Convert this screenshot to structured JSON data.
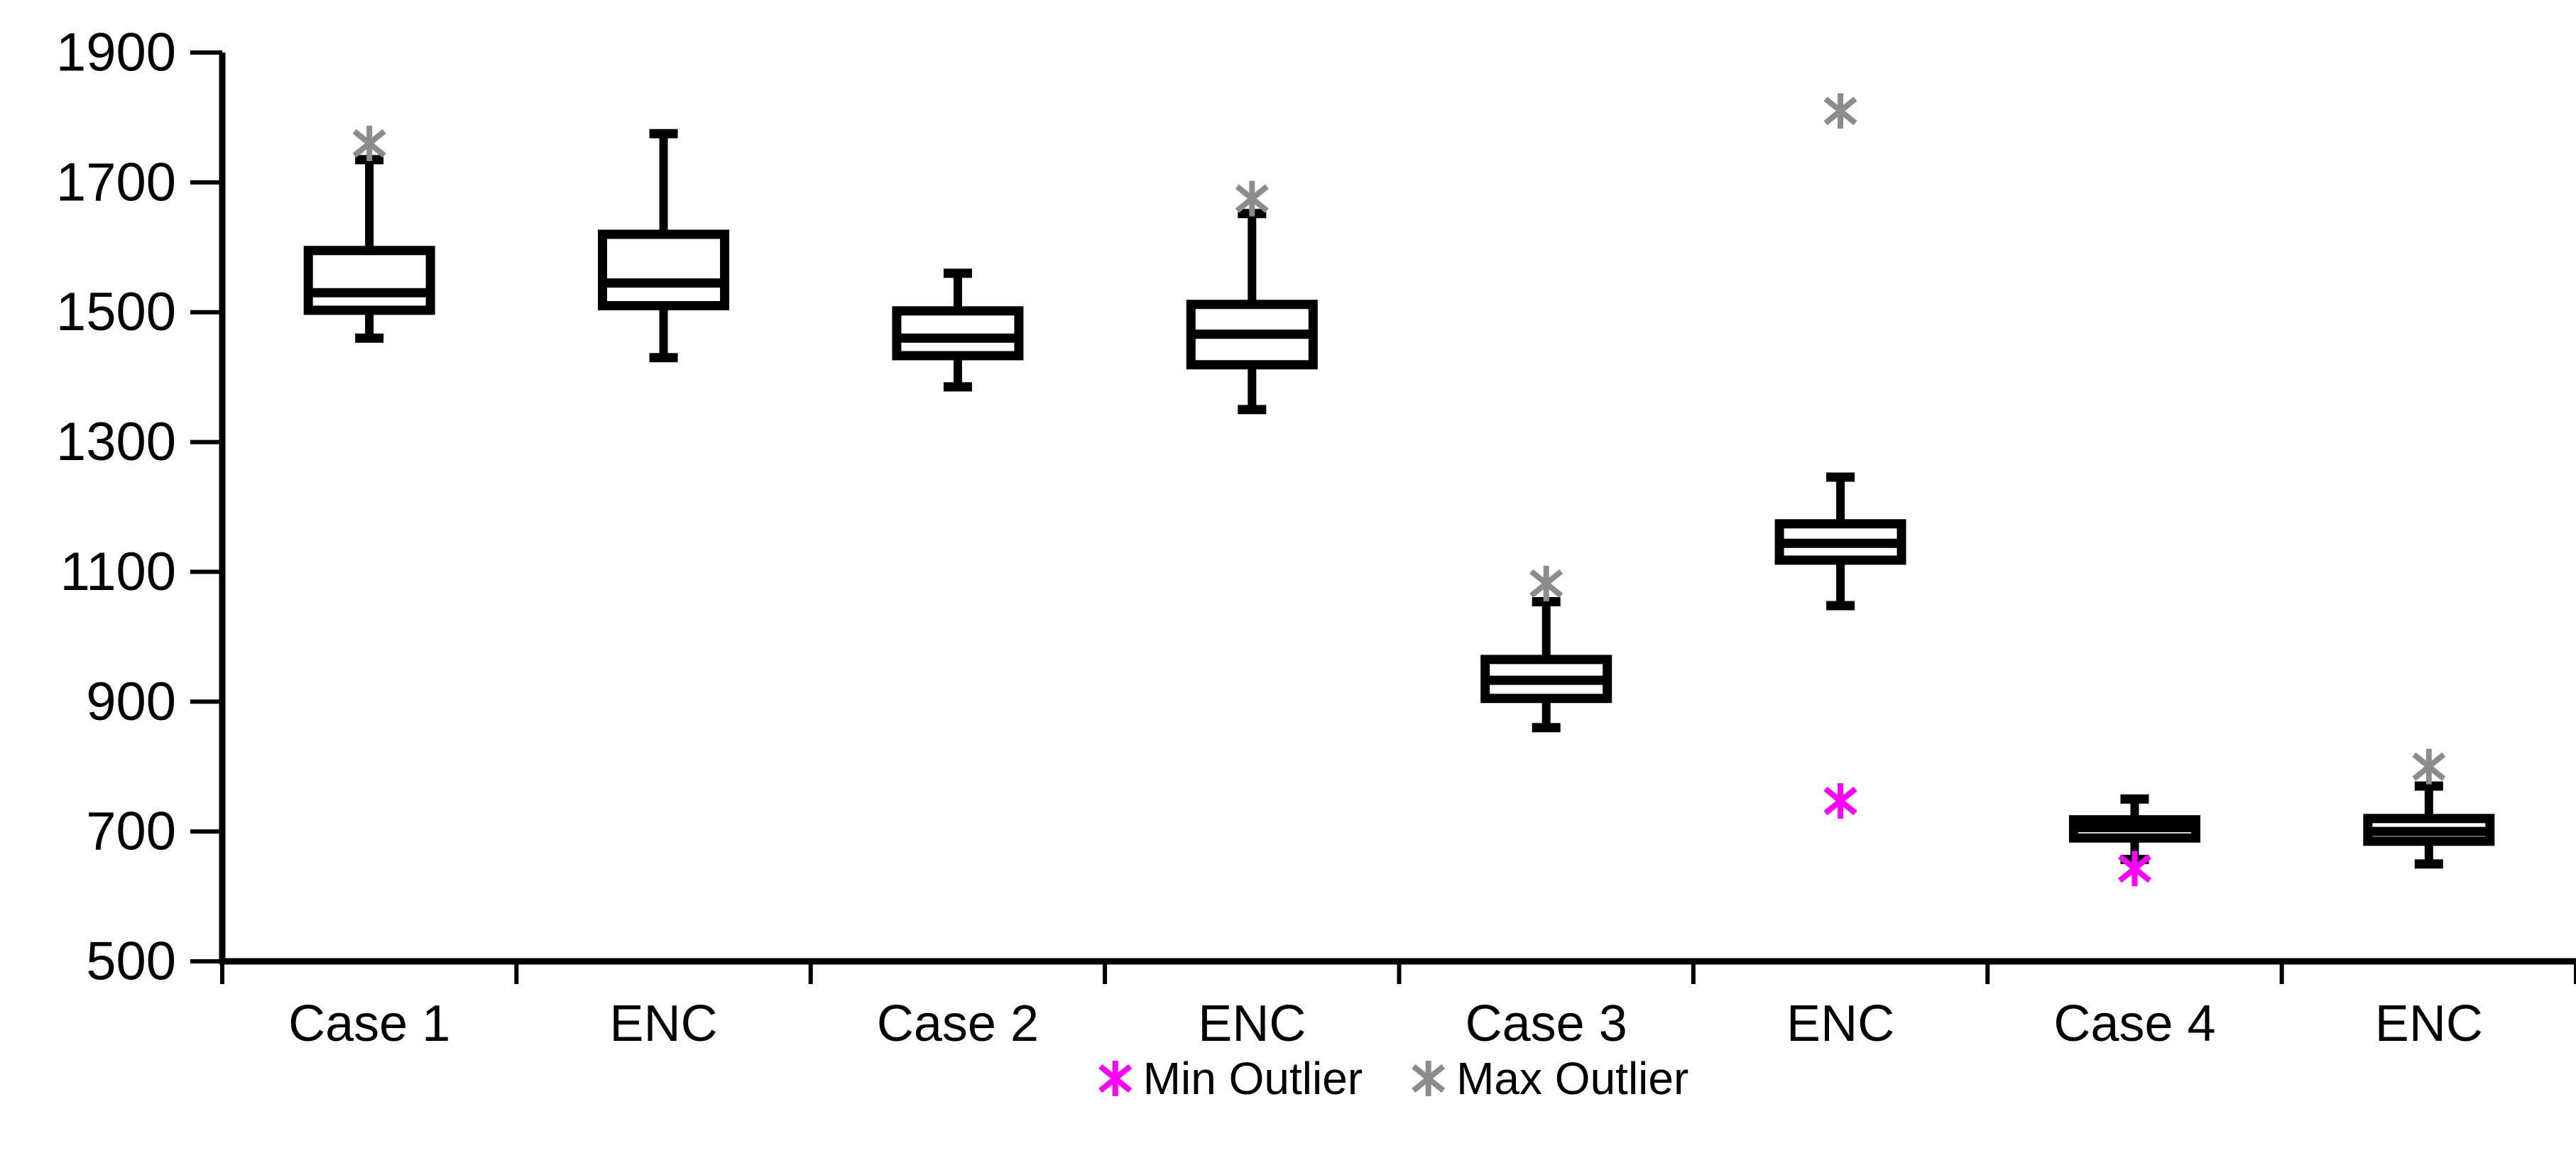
{
  "chart_data": {
    "type": "boxplot",
    "title": "",
    "xlabel": "",
    "ylabel": "",
    "categories": [
      "Case 1",
      "ENC",
      "Case 2",
      "ENC",
      "Case 3",
      "ENC",
      "Case 4",
      "ENC"
    ],
    "series": [
      {
        "category": "Case 1",
        "whisker_low": 1460,
        "q1": 1503,
        "median": 1530,
        "q3": 1595,
        "whisker_high": 1735,
        "max_outlier": 1760
      },
      {
        "category": "ENC",
        "whisker_low": 1430,
        "q1": 1510,
        "median": 1545,
        "q3": 1620,
        "whisker_high": 1775
      },
      {
        "category": "Case 2",
        "whisker_low": 1385,
        "q1": 1433,
        "median": 1460,
        "q3": 1502,
        "whisker_high": 1560
      },
      {
        "category": "ENC",
        "whisker_low": 1350,
        "q1": 1419,
        "median": 1466,
        "q3": 1512,
        "whisker_high": 1652,
        "max_outlier": 1675
      },
      {
        "category": "Case 3",
        "whisker_low": 860,
        "q1": 905,
        "median": 933,
        "q3": 965,
        "whisker_high": 1054,
        "max_outlier": 1082
      },
      {
        "category": "ENC",
        "whisker_low": 1048,
        "q1": 1118,
        "median": 1144,
        "q3": 1174,
        "whisker_high": 1246,
        "max_outlier": 1810,
        "min_outlier": 747
      },
      {
        "category": "Case 4",
        "whisker_low": 657,
        "q1": 690,
        "median": 706,
        "q3": 718,
        "whisker_high": 750,
        "min_outlier": 643
      },
      {
        "category": "ENC",
        "whisker_low": 650,
        "q1": 685,
        "median": 700,
        "q3": 720,
        "whisker_high": 770,
        "max_outlier": 800
      }
    ],
    "ylim": [
      500,
      1900
    ],
    "ytick_step": 200,
    "ytick_labels": [
      "1900",
      "1700",
      "1500",
      "1300",
      "1100",
      "900",
      "700",
      "500"
    ],
    "grid": false,
    "legend_position": "bottom-center",
    "legend": [
      {
        "label": "Min Outlier",
        "marker": "asterisk-icon",
        "color": "#FF00FF"
      },
      {
        "label": "Max Outlier",
        "marker": "asterisk-icon",
        "color": "#8C8C8C"
      }
    ],
    "colors": {
      "box_stroke": "#000000",
      "box_fill": "#FFFFFF",
      "axis": "#000000",
      "tick_label": "#000000",
      "background": "#FFFFFF",
      "min_outlier": "#FF00FF",
      "max_outlier": "#8C8C8C"
    }
  }
}
